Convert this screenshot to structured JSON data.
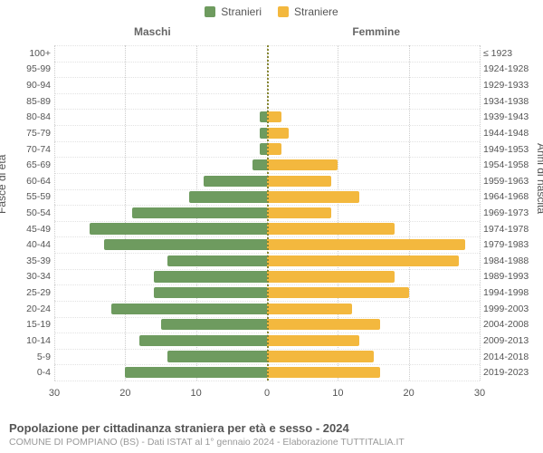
{
  "legend": {
    "male": {
      "label": "Stranieri",
      "color": "#6e9b5f"
    },
    "female": {
      "label": "Straniere",
      "color": "#f3b83e"
    }
  },
  "column_titles": {
    "left": "Maschi",
    "right": "Femmine"
  },
  "axis_labels": {
    "left": "Fasce di età",
    "right": "Anni di nascita"
  },
  "chart": {
    "type": "population-pyramid",
    "x_max": 30,
    "x_ticks_left": [
      30,
      20,
      10,
      0
    ],
    "x_ticks_right": [
      0,
      10,
      20,
      30
    ],
    "grid_color": "#cccccc",
    "grid_h_color": "#e2e2e2",
    "centerline_color": "#888833",
    "background_color": "#ffffff",
    "bar_colors": {
      "male": "#6e9b5f",
      "female": "#f3b83e"
    },
    "label_fontsize": 10.5,
    "tick_fontsize": 11,
    "col_title_fontsize": 12,
    "rows": [
      {
        "age": "100+",
        "birth": "≤ 1923",
        "male": 0,
        "female": 0
      },
      {
        "age": "95-99",
        "birth": "1924-1928",
        "male": 0,
        "female": 0
      },
      {
        "age": "90-94",
        "birth": "1929-1933",
        "male": 0,
        "female": 0
      },
      {
        "age": "85-89",
        "birth": "1934-1938",
        "male": 0,
        "female": 0
      },
      {
        "age": "80-84",
        "birth": "1939-1943",
        "male": 1,
        "female": 2
      },
      {
        "age": "75-79",
        "birth": "1944-1948",
        "male": 1,
        "female": 3
      },
      {
        "age": "70-74",
        "birth": "1949-1953",
        "male": 1,
        "female": 2
      },
      {
        "age": "65-69",
        "birth": "1954-1958",
        "male": 2,
        "female": 10
      },
      {
        "age": "60-64",
        "birth": "1959-1963",
        "male": 9,
        "female": 9
      },
      {
        "age": "55-59",
        "birth": "1964-1968",
        "male": 11,
        "female": 13
      },
      {
        "age": "50-54",
        "birth": "1969-1973",
        "male": 19,
        "female": 9
      },
      {
        "age": "45-49",
        "birth": "1974-1978",
        "male": 25,
        "female": 18
      },
      {
        "age": "40-44",
        "birth": "1979-1983",
        "male": 23,
        "female": 28
      },
      {
        "age": "35-39",
        "birth": "1984-1988",
        "male": 14,
        "female": 27
      },
      {
        "age": "30-34",
        "birth": "1989-1993",
        "male": 16,
        "female": 18
      },
      {
        "age": "25-29",
        "birth": "1994-1998",
        "male": 16,
        "female": 20
      },
      {
        "age": "20-24",
        "birth": "1999-2003",
        "male": 22,
        "female": 12
      },
      {
        "age": "15-19",
        "birth": "2004-2008",
        "male": 15,
        "female": 16
      },
      {
        "age": "10-14",
        "birth": "2009-2013",
        "male": 18,
        "female": 13
      },
      {
        "age": "5-9",
        "birth": "2014-2018",
        "male": 14,
        "female": 15
      },
      {
        "age": "0-4",
        "birth": "2019-2023",
        "male": 20,
        "female": 16
      }
    ]
  },
  "footer": {
    "title": "Popolazione per cittadinanza straniera per età e sesso - 2024",
    "source": "COMUNE DI POMPIANO (BS) - Dati ISTAT al 1° gennaio 2024 - Elaborazione TUTTITALIA.IT"
  }
}
